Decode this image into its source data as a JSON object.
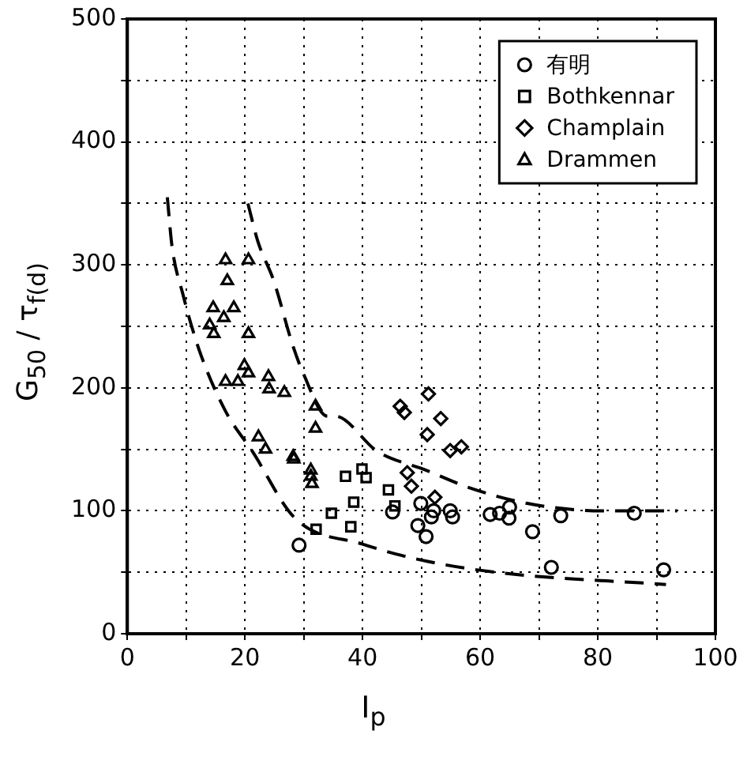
{
  "chart_data": {
    "type": "scatter",
    "xlabel": "I$_{p}$",
    "ylabel": "G$_{50}$ / τ$_{f(d)}$",
    "xlim": [
      0,
      100
    ],
    "ylim": [
      0,
      500
    ],
    "xticks": [
      0,
      {
        "value": 10,
        "label": null
      },
      20,
      {
        "value": 30,
        "label": null
      },
      40,
      {
        "value": 50,
        "label": null
      },
      60,
      {
        "value": 70,
        "label": null
      },
      80,
      {
        "value": 90,
        "label": null
      },
      100
    ],
    "yticks": [
      0,
      {
        "value": 50,
        "label": null
      },
      100,
      {
        "value": 150,
        "label": null
      },
      200,
      {
        "value": 250,
        "label": null
      },
      300,
      {
        "value": 350,
        "label": null
      },
      400,
      {
        "value": 450,
        "label": null
      },
      500
    ],
    "grid": true,
    "legend": "top right",
    "series": [
      {
        "name": "有明",
        "color": "#000000",
        "marker": "circle",
        "x": [
          29.2,
          45.1,
          49.9,
          52.1,
          54.9,
          55.3,
          51.7,
          49.4,
          50.8,
          61.7,
          63.3,
          65,
          64.9,
          68.9,
          72.1,
          73.7,
          86.2,
          91.2
        ],
        "values": [
          72,
          99,
          106,
          100,
          100,
          95,
          95,
          88,
          79,
          97,
          98,
          103,
          94,
          83,
          54,
          96,
          98,
          52
        ]
      },
      {
        "name": "Bothkennar",
        "color": "#000000",
        "marker": "square",
        "x": [
          32.1,
          34.7,
          37.1,
          39.9,
          40.6,
          44.4,
          45.5,
          38.5,
          38
        ],
        "values": [
          85,
          98,
          128,
          134,
          127,
          117,
          104,
          107,
          87
        ]
      },
      {
        "name": "Champlain",
        "color": "#000000",
        "marker": "diamond",
        "x": [
          46.4,
          47.1,
          51.2,
          53.3,
          51,
          54.9,
          56.8,
          47.6,
          48.3,
          52.3
        ],
        "values": [
          185,
          180,
          195,
          175,
          162,
          149,
          152,
          131,
          120,
          111
        ]
      },
      {
        "name": "Drammen",
        "color": "#000000",
        "marker": "triangle",
        "x": [
          16.7,
          20.6,
          17,
          14.6,
          18.1,
          16.4,
          14,
          14.7,
          20.6,
          19.9,
          20.6,
          16.7,
          18.8,
          24,
          24.1,
          26.7,
          32,
          32,
          22.3,
          23.5,
          28.2,
          28.3,
          31.2,
          31.2,
          31.4
        ],
        "values": [
          304,
          304,
          287,
          265,
          265,
          257,
          251,
          244,
          244,
          218,
          212,
          205,
          205,
          209,
          199,
          196,
          185,
          167,
          160,
          150,
          144,
          142,
          133,
          128,
          122
        ]
      },
      {
        "type": "line",
        "line_style": "dashed",
        "marker": "none",
        "color": "#000000",
        "x": [
          20.5,
          22.2,
          24.9,
          28.1,
          29.9,
          34,
          35.3,
          42.6,
          50.8,
          58,
          68,
          80.7,
          93.5
        ],
        "values": [
          350,
          319,
          287,
          235,
          212,
          177,
          177,
          148,
          133,
          119,
          106,
          100,
          100
        ]
      },
      {
        "type": "line",
        "line_style": "dashed",
        "marker": "none",
        "color": "#000000",
        "x": [
          6.8,
          7.6,
          9.4,
          12.2,
          16.7,
          21.3,
          28.5,
          39.9,
          49.9,
          62.6,
          91.6
        ],
        "values": [
          355,
          315,
          277,
          231,
          181,
          148,
          94,
          73,
          60,
          50,
          40
        ]
      }
    ]
  }
}
